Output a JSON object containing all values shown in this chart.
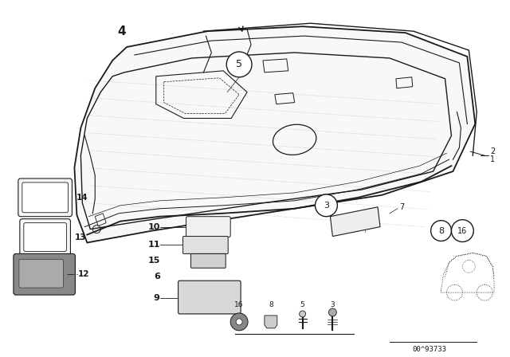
{
  "bg_color": "#ffffff",
  "line_color": "#1a1a1a",
  "diagram_number": "00^93733"
}
